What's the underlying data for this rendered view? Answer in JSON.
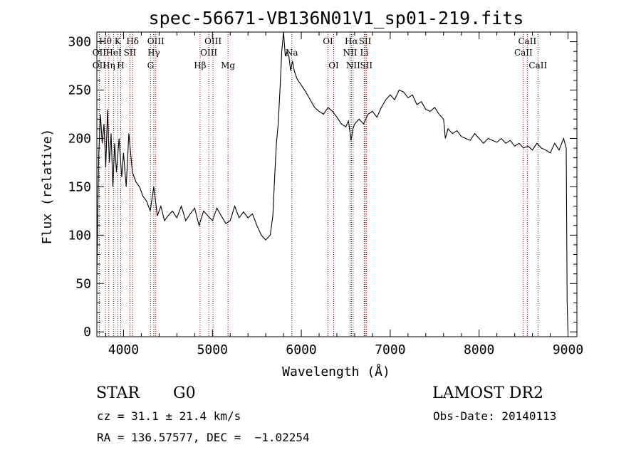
{
  "chart_data": {
    "type": "line",
    "title": "spec-56671-VB136N01V1_sp01-219.fits",
    "xlabel": "Wavelength (Å)",
    "ylabel": "Flux (relative)",
    "xlim": [
      3700,
      9100
    ],
    "ylim": [
      -5,
      310
    ],
    "xticks": [
      4000,
      5000,
      6000,
      7000,
      8000,
      9000
    ],
    "yticks": [
      0,
      50,
      100,
      150,
      200,
      250,
      300
    ],
    "series": [
      {
        "color": "#000000",
        "x": [
          3700,
          3720,
          3740,
          3760,
          3780,
          3800,
          3820,
          3840,
          3860,
          3880,
          3900,
          3920,
          3950,
          3980,
          4000,
          4030,
          4060,
          4100,
          4140,
          4180,
          4220,
          4260,
          4300,
          4340,
          4380,
          4420,
          4460,
          4500,
          4550,
          4600,
          4650,
          4700,
          4750,
          4800,
          4850,
          4900,
          4950,
          5000,
          5050,
          5100,
          5150,
          5200,
          5250,
          5300,
          5350,
          5400,
          5450,
          5500,
          5550,
          5600,
          5650,
          5680,
          5700,
          5720,
          5740,
          5760,
          5780,
          5800,
          5820,
          5840,
          5860,
          5880,
          5900,
          5920,
          5950,
          6000,
          6050,
          6100,
          6150,
          6200,
          6250,
          6300,
          6350,
          6400,
          6450,
          6500,
          6530,
          6560,
          6580,
          6600,
          6650,
          6700,
          6750,
          6800,
          6850,
          6900,
          6950,
          7000,
          7050,
          7100,
          7150,
          7200,
          7250,
          7300,
          7350,
          7400,
          7450,
          7500,
          7550,
          7600,
          7620,
          7650,
          7700,
          7750,
          7800,
          7850,
          7900,
          7950,
          8000,
          8050,
          8100,
          8150,
          8200,
          8250,
          8300,
          8350,
          8400,
          8450,
          8500,
          8550,
          8600,
          8650,
          8700,
          8750,
          8800,
          8850,
          8900,
          8950,
          8980,
          8990,
          9000
        ],
        "values": [
          60,
          180,
          225,
          195,
          215,
          170,
          230,
          175,
          205,
          150,
          195,
          165,
          200,
          160,
          185,
          150,
          205,
          165,
          155,
          150,
          140,
          135,
          125,
          150,
          120,
          130,
          115,
          120,
          125,
          118,
          130,
          115,
          122,
          128,
          110,
          125,
          120,
          115,
          128,
          120,
          112,
          115,
          130,
          118,
          124,
          118,
          122,
          110,
          100,
          95,
          100,
          120,
          160,
          195,
          215,
          250,
          290,
          310,
          285,
          290,
          285,
          270,
          280,
          270,
          262,
          255,
          248,
          240,
          232,
          228,
          225,
          232,
          228,
          222,
          215,
          212,
          218,
          198,
          210,
          215,
          220,
          215,
          225,
          228,
          222,
          232,
          240,
          245,
          240,
          250,
          248,
          242,
          245,
          235,
          238,
          230,
          228,
          232,
          225,
          220,
          200,
          210,
          205,
          208,
          202,
          200,
          198,
          205,
          200,
          195,
          200,
          198,
          196,
          200,
          195,
          198,
          192,
          195,
          190,
          192,
          188,
          195,
          190,
          188,
          185,
          195,
          188,
          200,
          190,
          30,
          0
        ]
      }
    ],
    "annotations": [
      {
        "label": "Hθ",
        "x": 3797,
        "row": 0
      },
      {
        "label": "K",
        "x": 3934,
        "row": 0
      },
      {
        "label": "Hδ",
        "x": 4102,
        "row": 0
      },
      {
        "label": "OIII",
        "x": 4363,
        "row": 0
      },
      {
        "label": "OIII",
        "x": 5007,
        "row": 0
      },
      {
        "label": "OI",
        "x": 6300,
        "row": 0
      },
      {
        "label": "Hα",
        "x": 6563,
        "row": 0
      },
      {
        "label": "SII",
        "x": 6717,
        "row": 0
      },
      {
        "label": "CaII",
        "x": 8542,
        "row": 0
      },
      {
        "label": "OII",
        "x": 3727,
        "row": 1
      },
      {
        "label": "HeI",
        "x": 3889,
        "row": 1
      },
      {
        "label": "SII",
        "x": 4072,
        "row": 1
      },
      {
        "label": "Hγ",
        "x": 4340,
        "row": 1
      },
      {
        "label": "OIII",
        "x": 4959,
        "row": 1
      },
      {
        "label": "Na",
        "x": 5893,
        "row": 1
      },
      {
        "label": "NII",
        "x": 6548,
        "row": 1
      },
      {
        "label": "Li",
        "x": 6708,
        "row": 1
      },
      {
        "label": "CaII",
        "x": 8498,
        "row": 1
      },
      {
        "label": "OII",
        "x": 3727,
        "row": 2
      },
      {
        "label": "Hη",
        "x": 3835,
        "row": 2
      },
      {
        "label": "H",
        "x": 3968,
        "row": 2
      },
      {
        "label": "G",
        "x": 4304,
        "row": 2
      },
      {
        "label": "Hβ",
        "x": 4861,
        "row": 2
      },
      {
        "label": "Mg",
        "x": 5175,
        "row": 2
      },
      {
        "label": "OI",
        "x": 6364,
        "row": 2
      },
      {
        "label": "NII",
        "x": 6583,
        "row": 2
      },
      {
        "label": "SII",
        "x": 6731,
        "row": 2
      },
      {
        "label": "CaII",
        "x": 8662,
        "row": 2
      }
    ],
    "line_marker_color": "#8b0000"
  },
  "footer": {
    "object_class": "STAR",
    "subclass": "G0",
    "survey": "LAMOST DR2",
    "cz": "cz = 31.1 ± 21.4 km/s",
    "obs_date": "Obs-Date: 20140113",
    "coords": "RA = 136.57577, DEC =  −1.02254"
  }
}
